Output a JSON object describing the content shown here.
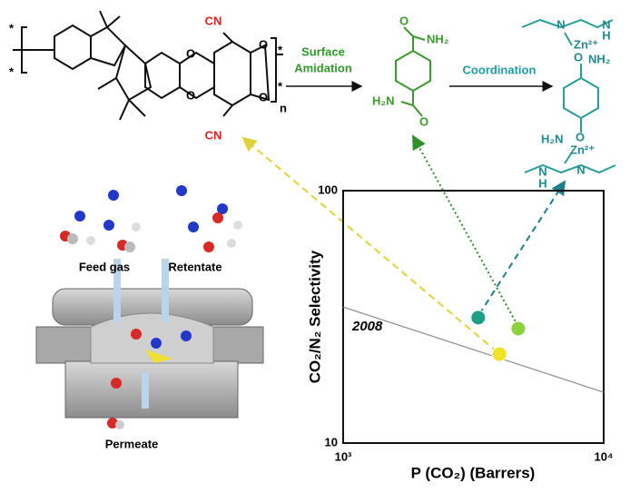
{
  "chart_data": {
    "type": "scatter",
    "xlabel": "P (CO₂) (Barrers)",
    "ylabel": "CO₂/N₂ Selectivity",
    "xscale": "log",
    "yscale": "log",
    "xlim": [
      1000,
      10000
    ],
    "ylim": [
      10,
      100
    ],
    "xticks": [
      {
        "value": 1000,
        "label": "10³"
      },
      {
        "value": 10000,
        "label": "10⁴"
      }
    ],
    "yticks": [
      10,
      100
    ],
    "series": [
      {
        "name": "2008",
        "style": "line",
        "color": "#8a8a8a",
        "x": [
          1000,
          10000
        ],
        "values": [
          34.6,
          15.9
        ]
      },
      {
        "style": "point",
        "color": "#1f9f86",
        "x": [
          3300
        ],
        "values": [
          31.4
        ]
      },
      {
        "style": "point",
        "color": "#8cd23c",
        "x": [
          4700
        ],
        "values": [
          28.4
        ]
      },
      {
        "style": "point",
        "color": "#efe226",
        "x": [
          3980
        ],
        "values": [
          22.5
        ]
      }
    ]
  },
  "diagram": {
    "polymer": {
      "cn_top": "CN",
      "cn_bottom": "CN",
      "oxygens": [
        "O",
        "O",
        "O",
        "O"
      ],
      "repeat": "n",
      "ends": [
        "*",
        "*",
        "*",
        "*"
      ]
    },
    "step1": [
      "Surface",
      "Amidation"
    ],
    "step2": "Coordination",
    "amide": {
      "top": "NH₂",
      "bottom": "H₂N",
      "o_top": "O",
      "o_bottom": "O"
    },
    "complex": {
      "n_top": [
        "N",
        "N"
      ],
      "h_top": "H",
      "zn_top": "Zn²⁺",
      "o_top": "O",
      "nh2_top": "NH₂",
      "nh2_bottom": "H₂N",
      "o_bottom": "O",
      "zn_bottom": "Zn²⁺",
      "n_bottom": [
        "N",
        "N"
      ],
      "h_bottom": "H"
    },
    "membrane": {
      "feed": "Feed gas",
      "retentate": "Retentate",
      "permeate": "Permeate"
    }
  }
}
